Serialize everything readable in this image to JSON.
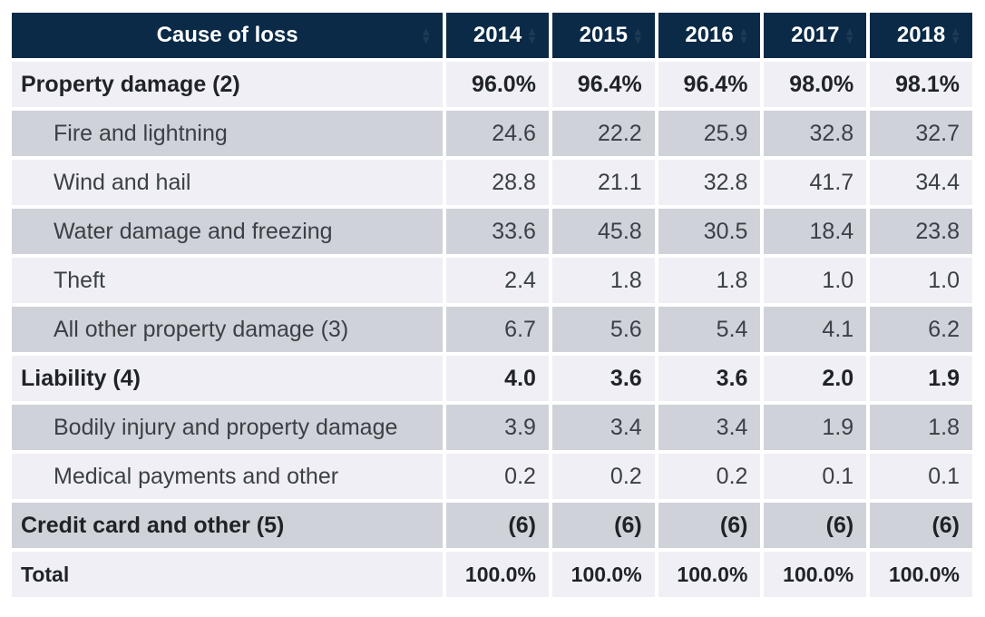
{
  "chart_data": {
    "type": "table",
    "columns": [
      "Cause of loss",
      "2014",
      "2015",
      "2016",
      "2017",
      "2018"
    ],
    "rows": [
      {
        "label": "Property damage (2)",
        "values": [
          "96.0%",
          "96.4%",
          "96.4%",
          "98.0%",
          "98.1%"
        ],
        "bold": true,
        "shade": "light"
      },
      {
        "label": "Fire and lightning",
        "values": [
          "24.6",
          "22.2",
          "25.9",
          "32.8",
          "32.7"
        ],
        "bold": false,
        "shade": "dark"
      },
      {
        "label": "Wind and hail",
        "values": [
          "28.8",
          "21.1",
          "32.8",
          "41.7",
          "34.4"
        ],
        "bold": false,
        "shade": "light"
      },
      {
        "label": "Water damage and freezing",
        "values": [
          "33.6",
          "45.8",
          "30.5",
          "18.4",
          "23.8"
        ],
        "bold": false,
        "shade": "dark"
      },
      {
        "label": "Theft",
        "values": [
          "2.4",
          "1.8",
          "1.8",
          "1.0",
          "1.0"
        ],
        "bold": false,
        "shade": "light"
      },
      {
        "label": "All other property damage (3)",
        "values": [
          "6.7",
          "5.6",
          "5.4",
          "4.1",
          "6.2"
        ],
        "bold": false,
        "shade": "dark"
      },
      {
        "label": "Liability (4)",
        "values": [
          "4.0",
          "3.6",
          "3.6",
          "2.0",
          "1.9"
        ],
        "bold": true,
        "shade": "light"
      },
      {
        "label": "Bodily injury and property damage",
        "values": [
          "3.9",
          "3.4",
          "3.4",
          "1.9",
          "1.8"
        ],
        "bold": false,
        "shade": "dark"
      },
      {
        "label": "Medical payments and other",
        "values": [
          "0.2",
          "0.2",
          "0.2",
          "0.1",
          "0.1"
        ],
        "bold": false,
        "shade": "light"
      },
      {
        "label": "Credit card and other (5)",
        "values": [
          "(6)",
          "(6)",
          "(6)",
          "(6)",
          "(6)"
        ],
        "bold": true,
        "shade": "dark"
      },
      {
        "label": "Total",
        "values": [
          "100.0%",
          "100.0%",
          "100.0%",
          "100.0%",
          "100.0%"
        ],
        "bold": true,
        "shade": "light",
        "total": true
      }
    ]
  },
  "colors": {
    "header_bg": "#0a2a47",
    "row_dark": "#cfd2d8",
    "row_light": "#efeff5"
  },
  "icons": {
    "sort": "sort-arrows-icon"
  }
}
